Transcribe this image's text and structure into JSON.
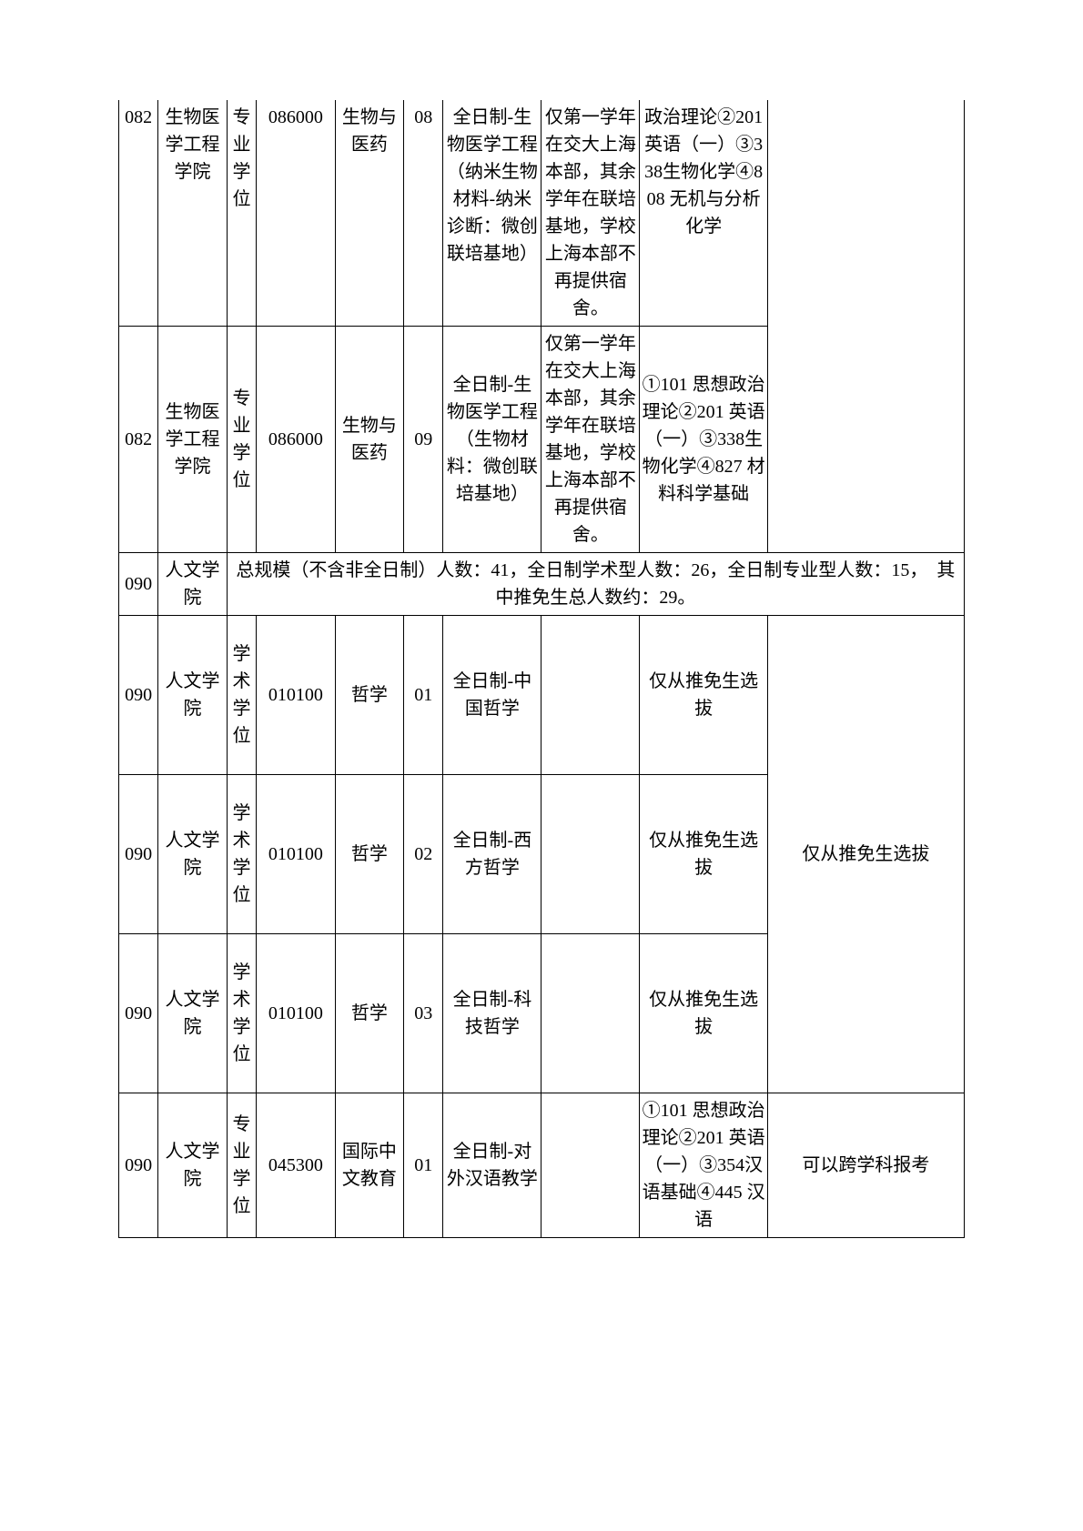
{
  "rows": [
    {
      "c0": "082",
      "c1": "生物医学工程学院",
      "c2": "专业学位",
      "c3": "086000",
      "c4": "生物与医药",
      "c5": "08",
      "c6": "全日制-生物医学工程（纳米生物材料-纳米诊断：微创联培基地）",
      "c7": "仅第一学年在交大上海本部，其余学年在联培基地，学校上海本部不再提供宿舍。",
      "c8": "政治理论②201 英语（一）③338生物化学④808 无机与分析化学",
      "c9": ""
    },
    {
      "c0": "082",
      "c1": "生物医学工程学院",
      "c2": "专业学位",
      "c3": "086000",
      "c4": "生物与医药",
      "c5": "09",
      "c6": "全日制-生物医学工程（生物材料：微创联培基地）",
      "c7": "仅第一学年在交大上海本部，其余学年在联培基地，学校上海本部不再提供宿舍。",
      "c8": "①101 思想政治理论②201 英语（一）③338生物化学④827 材料科学基础",
      "c9": ""
    },
    {
      "c0": "090",
      "c1": "人文学院",
      "span": "总规模（不含非全日制）人数：41，全日制学术型人数：26，全日制专业型人数：15，　其中推免生总人数约：29。"
    },
    {
      "c0": "090",
      "c1": "人文学院",
      "c2": "学术学位",
      "c3": "010100",
      "c4": "哲学",
      "c5": "01",
      "c6": "全日制-中国哲学",
      "c7": "",
      "c8": "仅从推免生选拔",
      "c9row": "仅从推免生选拔"
    },
    {
      "c0": "090",
      "c1": "人文学院",
      "c2": "学术学位",
      "c3": "010100",
      "c4": "哲学",
      "c5": "02",
      "c6": "全日制-西方哲学",
      "c7": "",
      "c8": "仅从推免生选拔"
    },
    {
      "c0": "090",
      "c1": "人文学院",
      "c2": "学术学位",
      "c3": "010100",
      "c4": "哲学",
      "c5": "03",
      "c6": "全日制-科技哲学",
      "c7": "",
      "c8": "仅从推免生选拔"
    },
    {
      "c0": "090",
      "c1": "人文学院",
      "c2": "专业学位",
      "c3": "045300",
      "c4": "国际中文教育",
      "c5": "01",
      "c6": "全日制-对外汉语教学",
      "c7": "",
      "c8": "①101 思想政治理论②201 英语（一）③354汉语基础④445 汉语",
      "c9": "可以跨学科报考"
    }
  ]
}
